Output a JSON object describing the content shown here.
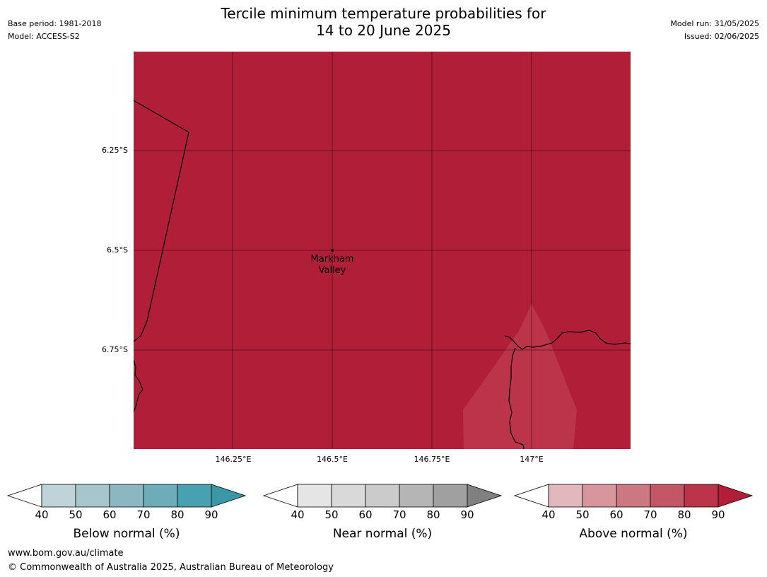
{
  "header": {
    "title": "Tercile minimum temperature probabilities for\n14 to 20 June 2025",
    "base_period": "Base period: 1981-2018",
    "model": "Model: ACCESS-S2",
    "model_run": "Model run: 31/05/2025",
    "issued": "Issued: 02/06/2025"
  },
  "map": {
    "fill_color": "#b01e38",
    "overlay_color": "#bc3449",
    "lat_ticks": [
      "6.25°S",
      "6.5°S",
      "6.75°S"
    ],
    "lon_ticks": [
      "146.25°E",
      "146.5°E",
      "146.75°E",
      "147°E"
    ],
    "place": {
      "name": "Markham\nValley",
      "marker": "point-marker"
    }
  },
  "colorbars": [
    {
      "label": "Below normal (%)",
      "ticks": [
        "40",
        "50",
        "60",
        "70",
        "80",
        "90"
      ],
      "colors": [
        "#ffffff",
        "#bfd4d9",
        "#a6c6cb",
        "#8ab7c2",
        "#6dadb9",
        "#48a1b0",
        "#3a97a7"
      ]
    },
    {
      "label": "Near normal (%)",
      "ticks": [
        "40",
        "50",
        "60",
        "70",
        "80",
        "90"
      ],
      "colors": [
        "#ffffff",
        "#e5e5e5",
        "#d9d9d9",
        "#cbcbcb",
        "#b5b5b5",
        "#a0a0a0",
        "#808080"
      ]
    },
    {
      "label": "Above normal (%)",
      "ticks": [
        "40",
        "50",
        "60",
        "70",
        "80",
        "90"
      ],
      "colors": [
        "#ffffff",
        "#e3b8bd",
        "#d8959c",
        "#cc7880",
        "#c45766",
        "#bc3449",
        "#b01e38"
      ]
    }
  ],
  "footer": {
    "url": "www.bom.gov.au/climate",
    "copyright": "© Commonwealth of Australia 2025, Australian Bureau of Meteorology"
  }
}
